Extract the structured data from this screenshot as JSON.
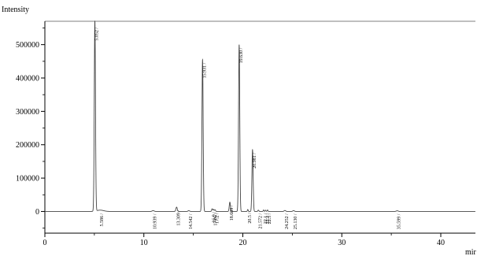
{
  "chart_data": {
    "type": "line",
    "title": "",
    "ylabel": "Intensity",
    "xlabel": "mir",
    "xlim": [
      0,
      43.5
    ],
    "ylim": [
      -65000,
      570000
    ],
    "x_ticks": [
      0,
      10,
      20,
      30,
      40
    ],
    "y_ticks": [
      0,
      100000,
      200000,
      300000,
      400000,
      500000
    ],
    "grid": false,
    "legend": "none",
    "colors": {
      "trace": "#444444",
      "axis": "#000000"
    },
    "peaks": [
      {
        "rt": 5.052,
        "label": "5.052",
        "height": 570000,
        "width": 0.06
      },
      {
        "rt": 5.586,
        "label": "5.586",
        "height": 4000,
        "width": 0.35
      },
      {
        "rt": 10.939,
        "label": "10.939",
        "height": 2500,
        "width": 0.1
      },
      {
        "rt": 13.309,
        "label": "13.309",
        "height": 13000,
        "width": 0.07
      },
      {
        "rt": 14.542,
        "label": "14.542",
        "height": 2500,
        "width": 0.08
      },
      {
        "rt": 15.931,
        "label": "15.931",
        "height": 455000,
        "width": 0.06
      },
      {
        "rt": 16.9,
        "label": "16.9",
        "height": 8000,
        "width": 0.05
      },
      {
        "rt": 17.05,
        "label": "17.05",
        "height": 6000,
        "width": 0.05
      },
      {
        "rt": 17.2,
        "label": "17.2",
        "height": 5000,
        "width": 0.05
      },
      {
        "rt": 18.689,
        "label": "18.689",
        "height": 28000,
        "width": 0.06
      },
      {
        "rt": 19.63,
        "label": "19.630",
        "height": 500000,
        "width": 0.06
      },
      {
        "rt": 20.981,
        "label": "20.981",
        "height": 185000,
        "width": 0.06
      },
      {
        "rt": 20.5,
        "label": "20.5",
        "height": 6000,
        "width": 0.04
      },
      {
        "rt": 21.572,
        "label": "21.572",
        "height": 4000,
        "width": 0.05
      },
      {
        "rt": 22.1,
        "label": "22.1",
        "height": 4500,
        "width": 0.04
      },
      {
        "rt": 22.3,
        "label": "22.3",
        "height": 4000,
        "width": 0.04
      },
      {
        "rt": 22.5,
        "label": "22.5",
        "height": 4500,
        "width": 0.04
      },
      {
        "rt": 24.252,
        "label": "24.252",
        "height": 3000,
        "width": 0.08
      },
      {
        "rt": 25.13,
        "label": "25.130",
        "height": 2500,
        "width": 0.08
      },
      {
        "rt": 35.599,
        "label": "35.599",
        "height": 2000,
        "width": 0.1
      }
    ]
  }
}
